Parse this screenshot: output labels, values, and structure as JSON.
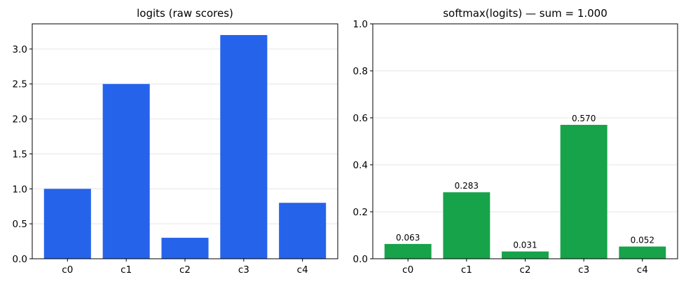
{
  "chart_data": [
    {
      "type": "bar",
      "title": "logits (raw scores)",
      "categories": [
        "c0",
        "c1",
        "c2",
        "c3",
        "c4"
      ],
      "values": [
        1.0,
        2.5,
        0.3,
        3.2,
        0.8
      ],
      "ylim": [
        0,
        3.36
      ],
      "yticks": [
        0.0,
        0.5,
        1.0,
        1.5,
        2.0,
        2.5,
        3.0
      ],
      "ytick_labels": [
        "0.0",
        "0.5",
        "1.0",
        "1.5",
        "2.0",
        "2.5",
        "3.0"
      ],
      "grid": "horizontal",
      "bar_color": "#2563eb",
      "show_value_labels": false
    },
    {
      "type": "bar",
      "title": "softmax(logits) — sum = 1.000",
      "categories": [
        "c0",
        "c1",
        "c2",
        "c3",
        "c4"
      ],
      "values": [
        0.063,
        0.283,
        0.031,
        0.57,
        0.052
      ],
      "value_labels": [
        "0.063",
        "0.283",
        "0.031",
        "0.570",
        "0.052"
      ],
      "ylim": [
        0,
        1.0
      ],
      "yticks": [
        0.0,
        0.2,
        0.4,
        0.6,
        0.8,
        1.0
      ],
      "ytick_labels": [
        "0.0",
        "0.2",
        "0.4",
        "0.6",
        "0.8",
        "1.0"
      ],
      "grid": "horizontal",
      "bar_color": "#16a34a",
      "show_value_labels": true
    }
  ]
}
